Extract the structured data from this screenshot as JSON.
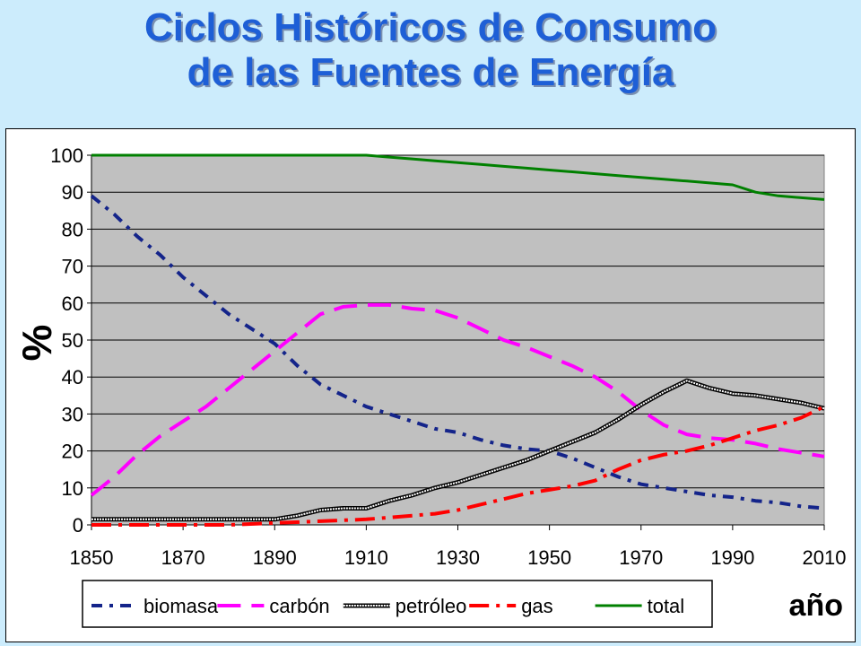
{
  "title": {
    "line1": "Ciclos Históricos de Consumo",
    "line2": "de las Fuentes de Energía"
  },
  "chart_data": {
    "type": "line",
    "xlabel": "año",
    "ylabel": "%",
    "xlim": [
      1850,
      2010
    ],
    "ylim": [
      0,
      100
    ],
    "x_ticks": [
      1850,
      1870,
      1890,
      1910,
      1930,
      1950,
      1970,
      1990,
      2010
    ],
    "y_ticks": [
      0,
      10,
      20,
      30,
      40,
      50,
      60,
      70,
      80,
      90,
      100
    ],
    "grid": "horizontal",
    "legend_position": "bottom",
    "plot_background": "#c0c0c0",
    "series": [
      {
        "name": "biomasa",
        "color": "#14248a",
        "style": "dotted-dash",
        "points": [
          [
            1850,
            89
          ],
          [
            1855,
            84
          ],
          [
            1860,
            78
          ],
          [
            1865,
            73
          ],
          [
            1870,
            67
          ],
          [
            1875,
            62
          ],
          [
            1880,
            57
          ],
          [
            1885,
            53
          ],
          [
            1890,
            49
          ],
          [
            1895,
            43
          ],
          [
            1900,
            38
          ],
          [
            1905,
            35
          ],
          [
            1910,
            32
          ],
          [
            1915,
            30
          ],
          [
            1920,
            28
          ],
          [
            1925,
            26
          ],
          [
            1930,
            25
          ],
          [
            1935,
            23
          ],
          [
            1940,
            21.5
          ],
          [
            1945,
            20.5
          ],
          [
            1950,
            20
          ],
          [
            1955,
            18
          ],
          [
            1960,
            15.5
          ],
          [
            1965,
            13
          ],
          [
            1970,
            11
          ],
          [
            1975,
            10
          ],
          [
            1980,
            9
          ],
          [
            1985,
            8
          ],
          [
            1990,
            7.5
          ],
          [
            1995,
            6.5
          ],
          [
            2000,
            6
          ],
          [
            2005,
            5
          ],
          [
            2010,
            4.5
          ]
        ]
      },
      {
        "name": "carbón",
        "color": "#ff00ff",
        "style": "long-dash",
        "points": [
          [
            1850,
            8
          ],
          [
            1855,
            13
          ],
          [
            1860,
            19
          ],
          [
            1865,
            24
          ],
          [
            1870,
            28
          ],
          [
            1875,
            32
          ],
          [
            1880,
            37
          ],
          [
            1885,
            42
          ],
          [
            1890,
            47
          ],
          [
            1895,
            52
          ],
          [
            1900,
            57
          ],
          [
            1905,
            59
          ],
          [
            1910,
            59.5
          ],
          [
            1915,
            59.5
          ],
          [
            1920,
            58.5
          ],
          [
            1925,
            58
          ],
          [
            1930,
            56
          ],
          [
            1935,
            53
          ],
          [
            1940,
            50
          ],
          [
            1945,
            48
          ],
          [
            1950,
            45.5
          ],
          [
            1955,
            43
          ],
          [
            1960,
            40
          ],
          [
            1965,
            36
          ],
          [
            1970,
            31
          ],
          [
            1975,
            27
          ],
          [
            1980,
            24.5
          ],
          [
            1985,
            23.5
          ],
          [
            1990,
            23
          ],
          [
            1995,
            22
          ],
          [
            2000,
            20.5
          ],
          [
            2005,
            19.5
          ],
          [
            2010,
            18.5
          ]
        ]
      },
      {
        "name": "petróleo",
        "color": "#000000",
        "style": "double-thin",
        "points": [
          [
            1850,
            1.5
          ],
          [
            1860,
            1.5
          ],
          [
            1870,
            1.5
          ],
          [
            1880,
            1.5
          ],
          [
            1890,
            1.5
          ],
          [
            1895,
            2.5
          ],
          [
            1900,
            4
          ],
          [
            1905,
            4.5
          ],
          [
            1910,
            4.5
          ],
          [
            1915,
            6.5
          ],
          [
            1920,
            8
          ],
          [
            1925,
            10
          ],
          [
            1930,
            11.5
          ],
          [
            1935,
            13.5
          ],
          [
            1940,
            15.5
          ],
          [
            1945,
            17.5
          ],
          [
            1950,
            20
          ],
          [
            1955,
            22.5
          ],
          [
            1960,
            25
          ],
          [
            1965,
            28.5
          ],
          [
            1970,
            32.5
          ],
          [
            1975,
            36
          ],
          [
            1980,
            39
          ],
          [
            1985,
            37
          ],
          [
            1990,
            35.5
          ],
          [
            1995,
            35
          ],
          [
            2000,
            34
          ],
          [
            2005,
            33
          ],
          [
            2010,
            31.5
          ]
        ]
      },
      {
        "name": "gas",
        "color": "#ff0000",
        "style": "dash-dot",
        "points": [
          [
            1850,
            0
          ],
          [
            1860,
            0
          ],
          [
            1870,
            0
          ],
          [
            1880,
            0
          ],
          [
            1890,
            0.5
          ],
          [
            1900,
            1
          ],
          [
            1910,
            1.5
          ],
          [
            1915,
            2
          ],
          [
            1920,
            2.5
          ],
          [
            1925,
            3
          ],
          [
            1930,
            4
          ],
          [
            1935,
            5.5
          ],
          [
            1940,
            7
          ],
          [
            1945,
            8.5
          ],
          [
            1950,
            9.5
          ],
          [
            1955,
            10.5
          ],
          [
            1960,
            12
          ],
          [
            1965,
            15
          ],
          [
            1970,
            17.5
          ],
          [
            1975,
            19
          ],
          [
            1980,
            20
          ],
          [
            1985,
            21.5
          ],
          [
            1990,
            23.5
          ],
          [
            1995,
            25.5
          ],
          [
            2000,
            27
          ],
          [
            2005,
            29
          ],
          [
            2010,
            32
          ]
        ]
      },
      {
        "name": "total",
        "color": "#008000",
        "style": "solid",
        "points": [
          [
            1850,
            100
          ],
          [
            1860,
            100
          ],
          [
            1870,
            100
          ],
          [
            1880,
            100
          ],
          [
            1890,
            100
          ],
          [
            1900,
            100
          ],
          [
            1910,
            100
          ],
          [
            1915,
            99.5
          ],
          [
            1920,
            99
          ],
          [
            1925,
            98.5
          ],
          [
            1930,
            98
          ],
          [
            1935,
            97.5
          ],
          [
            1940,
            97
          ],
          [
            1945,
            96.5
          ],
          [
            1950,
            96
          ],
          [
            1955,
            95.5
          ],
          [
            1960,
            95
          ],
          [
            1965,
            94.5
          ],
          [
            1970,
            94
          ],
          [
            1975,
            93.5
          ],
          [
            1980,
            93
          ],
          [
            1985,
            92.5
          ],
          [
            1990,
            92
          ],
          [
            1995,
            90
          ],
          [
            2000,
            89
          ],
          [
            2005,
            88.5
          ],
          [
            2010,
            88
          ]
        ]
      }
    ]
  }
}
